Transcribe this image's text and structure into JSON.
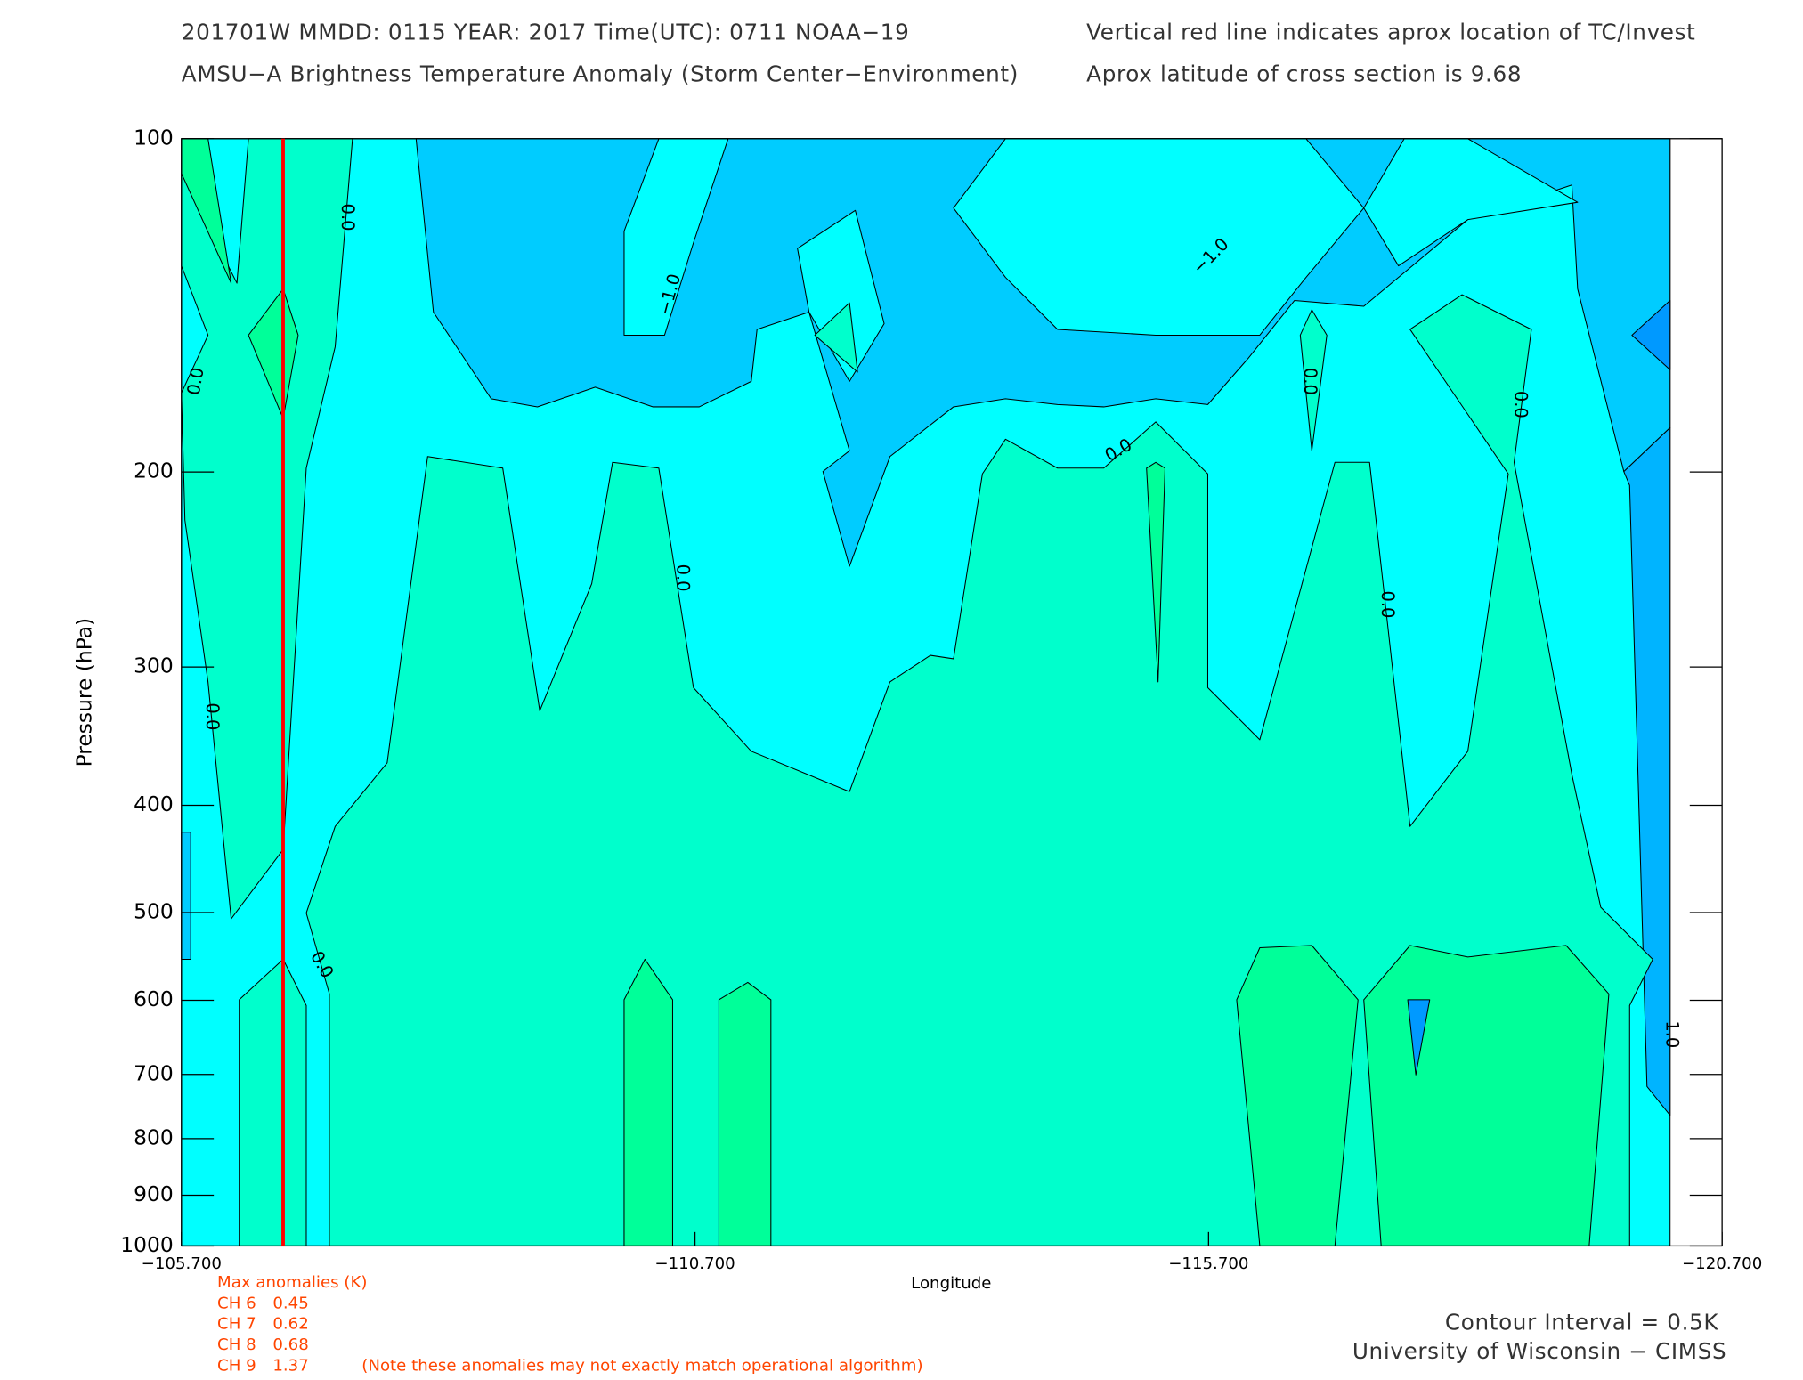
{
  "chart_data": {
    "type": "contour",
    "title": "201701W  MMDD: 0115 YEAR: 2017 Time(UTC): 0711 NOAA−19",
    "subtitle": "AMSU−A Brightness Temperature Anomaly (Storm Center−Environment)",
    "note_right_1": "Vertical red line indicates aprox location of TC/Invest",
    "note_right_2": "Aprox latitude of cross section is 9.68",
    "x_label": "Longitude",
    "y_label": "Pressure (hPa)",
    "xlim": [
      -105.7,
      -120.7
    ],
    "xticks": [
      {
        "value": -105.7,
        "label": "−105.700"
      },
      {
        "value": -110.7,
        "label": "−110.700"
      },
      {
        "value": -115.7,
        "label": "−115.700"
      },
      {
        "value": -120.7,
        "label": "−120.700"
      }
    ],
    "ylim": [
      100,
      1000
    ],
    "yscale": "log",
    "yticks": [
      100,
      200,
      300,
      400,
      500,
      600,
      700,
      800,
      900,
      1000
    ],
    "storm_longitude": -106.69,
    "storm_line_color": "#ff0000",
    "levels": [
      -2.0,
      -1.5,
      -1.0,
      -0.5,
      0.0,
      0.5
    ],
    "level_colors": [
      "#0099ff",
      "#00b4ff",
      "#00ccff",
      "#00ffff",
      "#00ffcc",
      "#00ff99"
    ],
    "contour_labels": [
      "0.0",
      "−1.0",
      "0.0",
      "0.0",
      "0.0",
      "0.0",
      "0.0",
      "0.0",
      "0.0",
      "0.0",
      "−1.0",
      "1.0"
    ],
    "max_anomalies_title": "Max anomalies (K)",
    "max_anomalies": [
      {
        "channel": "CH 6",
        "value": 0.45
      },
      {
        "channel": "CH 7",
        "value": 0.62
      },
      {
        "channel": "CH 8",
        "value": 0.68
      },
      {
        "channel": "CH 9",
        "value": 1.37
      }
    ],
    "anomaly_note": "(Note these anomalies may not exactly match operational algorithm)",
    "contour_interval": "Contour Interval = 0.5K",
    "credit": "University of Wisconsin − CIMSS"
  }
}
